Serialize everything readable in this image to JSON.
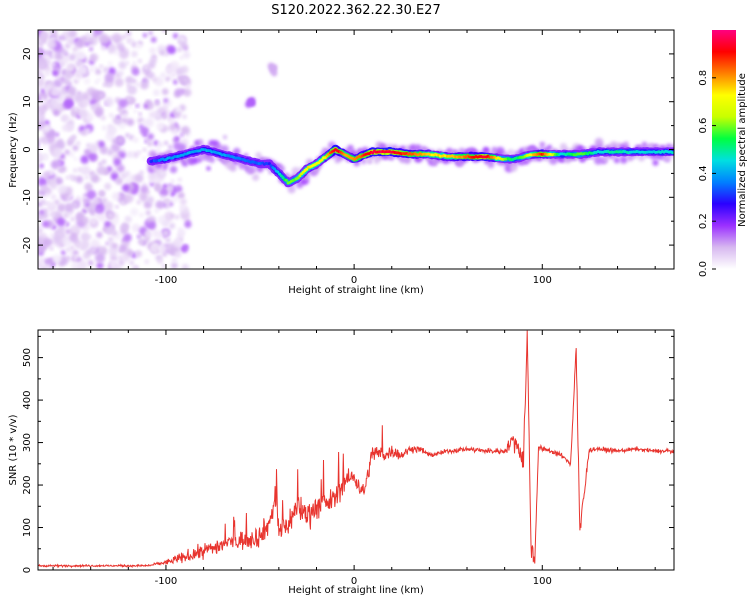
{
  "title": "S120.2022.362.22.30.E27",
  "chart_data": [
    {
      "type": "heatmap",
      "xlabel": "Height of straight line (km)",
      "ylabel": "Frequency (Hz)",
      "xlim": [
        -168,
        170
      ],
      "ylim": [
        -25,
        25
      ],
      "xticks": [
        -100,
        0,
        100
      ],
      "yticks": [
        -20,
        -10,
        0,
        10,
        20
      ],
      "grid": false,
      "colorbar": {
        "label": "Normalized spectral amplitude",
        "range": [
          0.0,
          1.0
        ],
        "ticks": [
          0.0,
          0.2,
          0.4,
          0.6,
          0.8
        ],
        "colormap": [
          "#ffffff",
          "#d7b8f0",
          "#9b30ff",
          "#2a00ff",
          "#0080ff",
          "#00e0e0",
          "#00ff40",
          "#c8ff00",
          "#ffff00",
          "#ff8000",
          "#ff0000",
          "#ff0080"
        ]
      },
      "ridge": {
        "x": [
          -108,
          -100,
          -90,
          -80,
          -70,
          -60,
          -50,
          -45,
          -35,
          -30,
          -25,
          -20,
          -15,
          -10,
          -5,
          0,
          10,
          20,
          30,
          40,
          50,
          60,
          70,
          80,
          85,
          90,
          95,
          100,
          105,
          110,
          120,
          130,
          140,
          150,
          160,
          170
        ],
        "frequency_hz": [
          -2.5,
          -2,
          -1,
          0,
          -1,
          -2,
          -3,
          -3,
          -7,
          -6,
          -4,
          -3,
          -1.5,
          0,
          -1,
          -2,
          -0.5,
          -0.5,
          -1,
          -1,
          -1.5,
          -1.5,
          -1.5,
          -2,
          -2,
          -1.5,
          -1,
          -1,
          -1,
          -1,
          -1,
          -0.5,
          -0.5,
          -0.5,
          -0.5,
          -0.5
        ],
        "amplitude": [
          0.3,
          0.4,
          0.4,
          0.4,
          0.4,
          0.35,
          0.35,
          0.3,
          0.6,
          0.6,
          0.75,
          0.7,
          0.75,
          0.95,
          0.8,
          0.8,
          0.95,
          0.95,
          0.85,
          0.75,
          0.75,
          0.85,
          0.95,
          0.6,
          0.5,
          0.6,
          0.75,
          0.9,
          0.7,
          0.45,
          0.6,
          0.45,
          0.5,
          0.45,
          0.45,
          0.45
        ]
      },
      "noise_region": {
        "x_range": [
          -168,
          -100
        ],
        "frequency_range": [
          -25,
          25
        ],
        "amplitude_max": 0.15
      },
      "isolated_features": [
        {
          "x": -43,
          "frequency_hz": 17,
          "amplitude": 0.05
        },
        {
          "x": -55,
          "frequency_hz": 10,
          "amplitude": 0.1
        }
      ]
    },
    {
      "type": "line",
      "xlabel": "Height of straight line (km)",
      "ylabel": "SNR (10 * v/v)",
      "xlim": [
        -168,
        170
      ],
      "ylim": [
        0,
        565
      ],
      "xticks": [
        -100,
        0,
        100
      ],
      "yticks": [
        0,
        100,
        200,
        300,
        400,
        500
      ],
      "grid": false,
      "series": [
        {
          "color": "#e8342e",
          "x": [
            -168,
            -150,
            -130,
            -110,
            -100,
            -90,
            -80,
            -70,
            -60,
            -50,
            -45,
            -42,
            -40,
            -35,
            -30,
            -25,
            -20,
            -15,
            -10,
            -5,
            0,
            5,
            10,
            15,
            20,
            25,
            30,
            35,
            40,
            50,
            60,
            70,
            80,
            85,
            90,
            92,
            94,
            96,
            98,
            100,
            105,
            110,
            115,
            118,
            120,
            125,
            130,
            140,
            150,
            160,
            170
          ],
          "y": [
            10,
            10,
            10,
            10,
            18,
            30,
            45,
            60,
            70,
            80,
            110,
            170,
            90,
            110,
            150,
            130,
            150,
            155,
            170,
            210,
            220,
            180,
            280,
            270,
            280,
            270,
            285,
            285,
            270,
            280,
            285,
            280,
            280,
            310,
            260,
            560,
            60,
            20,
            290,
            285,
            280,
            270,
            250,
            520,
            90,
            285,
            285,
            280,
            285,
            280,
            280
          ],
          "noise_amplitude": [
            4,
            4,
            4,
            4,
            10,
            25,
            30,
            35,
            40,
            45,
            45,
            50,
            50,
            55,
            55,
            55,
            55,
            45,
            45,
            40,
            35,
            35,
            35,
            35,
            25,
            20,
            15,
            15,
            10,
            10,
            10,
            10,
            10,
            40,
            60,
            30,
            50,
            20,
            10,
            10,
            10,
            10,
            10,
            60,
            40,
            10,
            10,
            8,
            8,
            8,
            8
          ]
        }
      ]
    }
  ]
}
